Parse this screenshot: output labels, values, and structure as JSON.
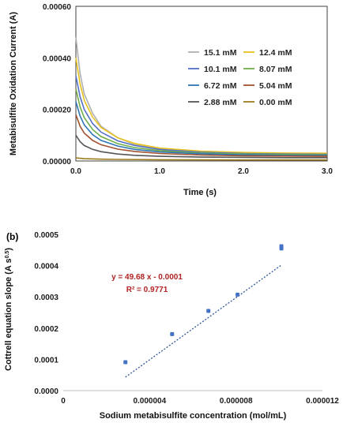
{
  "panel_b_label": "(b)",
  "chart_data": [
    {
      "type": "line",
      "title": "",
      "xlabel": "Time (s)",
      "ylabel": "Metabisulfite Oxidation Current  (A)",
      "xlim": [
        0,
        3
      ],
      "ylim": [
        0,
        0.0006
      ],
      "x_ticks": [
        "0.0",
        "1.0",
        "2.0",
        "3.0"
      ],
      "y_ticks": [
        "0.00000",
        "0.00020",
        "0.00040",
        "0.00060"
      ],
      "grid": false,
      "legend": "right",
      "series": [
        {
          "name": "15.1 mM",
          "color": "#b0b0b0",
          "values": [
            [
              0.0,
              0.00048
            ],
            [
              0.05,
              0.00034
            ],
            [
              0.1,
              0.00026
            ],
            [
              0.2,
              0.000185
            ],
            [
              0.3,
              0.000135
            ],
            [
              0.5,
              9e-05
            ],
            [
              0.7,
              6.5e-05
            ],
            [
              1.0,
              4.5e-05
            ],
            [
              1.5,
              3.2e-05
            ],
            [
              2.0,
              2.6e-05
            ],
            [
              2.5,
              2.3e-05
            ],
            [
              3.0,
              2.1e-05
            ]
          ]
        },
        {
          "name": "12.4 mM",
          "color": "#e8c21e",
          "values": [
            [
              0.0,
              0.0004
            ],
            [
              0.05,
              0.0003
            ],
            [
              0.1,
              0.000235
            ],
            [
              0.2,
              0.00017
            ],
            [
              0.3,
              0.00013
            ],
            [
              0.5,
              9e-05
            ],
            [
              0.7,
              6.8e-05
            ],
            [
              1.0,
              5e-05
            ],
            [
              1.5,
              3.8e-05
            ],
            [
              2.0,
              3.3e-05
            ],
            [
              2.5,
              3.1e-05
            ],
            [
              3.0,
              3e-05
            ]
          ]
        },
        {
          "name": "10.1 mM",
          "color": "#5470c6",
          "values": [
            [
              0.0,
              0.00033
            ],
            [
              0.05,
              0.00025
            ],
            [
              0.1,
              0.0002
            ],
            [
              0.2,
              0.000145
            ],
            [
              0.3,
              0.000112
            ],
            [
              0.5,
              7.8e-05
            ],
            [
              0.7,
              6e-05
            ],
            [
              1.0,
              4.5e-05
            ],
            [
              1.5,
              3.4e-05
            ],
            [
              2.0,
              2.9e-05
            ],
            [
              2.5,
              2.7e-05
            ],
            [
              3.0,
              2.6e-05
            ]
          ]
        },
        {
          "name": "8.07 mM",
          "color": "#70ad47",
          "values": [
            [
              0.0,
              0.00028
            ],
            [
              0.05,
              0.00021
            ],
            [
              0.1,
              0.000168
            ],
            [
              0.2,
              0.000122
            ],
            [
              0.3,
              9.5e-05
            ],
            [
              0.5,
              6.7e-05
            ],
            [
              0.7,
              5.2e-05
            ],
            [
              1.0,
              4e-05
            ],
            [
              1.5,
              3.1e-05
            ],
            [
              2.0,
              2.7e-05
            ],
            [
              2.5,
              2.5e-05
            ],
            [
              3.0,
              2.4e-05
            ]
          ]
        },
        {
          "name": "6.72 mM",
          "color": "#2e75b6",
          "values": [
            [
              0.0,
              0.00023
            ],
            [
              0.05,
              0.000175
            ],
            [
              0.1,
              0.00014
            ],
            [
              0.2,
              0.000102
            ],
            [
              0.3,
              8e-05
            ],
            [
              0.5,
              5.8e-05
            ],
            [
              0.7,
              4.5e-05
            ],
            [
              1.0,
              3.5e-05
            ],
            [
              1.5,
              2.8e-05
            ],
            [
              2.0,
              2.4e-05
            ],
            [
              2.5,
              2.2e-05
            ],
            [
              3.0,
              2.1e-05
            ]
          ]
        },
        {
          "name": "5.04 mM",
          "color": "#a0522d",
          "values": [
            [
              0.0,
              0.00018
            ],
            [
              0.05,
              0.000135
            ],
            [
              0.1,
              0.000108
            ],
            [
              0.2,
              8e-05
            ],
            [
              0.3,
              6.3e-05
            ],
            [
              0.5,
              4.6e-05
            ],
            [
              0.7,
              3.7e-05
            ],
            [
              1.0,
              2.9e-05
            ],
            [
              1.5,
              2.3e-05
            ],
            [
              2.0,
              2e-05
            ],
            [
              2.5,
              1.9e-05
            ],
            [
              3.0,
              1.8e-05
            ]
          ]
        },
        {
          "name": "2.88 mM",
          "color": "#555555",
          "values": [
            [
              0.0,
              0.0001
            ],
            [
              0.05,
              7.5e-05
            ],
            [
              0.1,
              6e-05
            ],
            [
              0.2,
              4.5e-05
            ],
            [
              0.3,
              3.6e-05
            ],
            [
              0.5,
              2.7e-05
            ],
            [
              0.7,
              2.2e-05
            ],
            [
              1.0,
              1.8e-05
            ],
            [
              1.5,
              1.5e-05
            ],
            [
              2.0,
              1.4e-05
            ],
            [
              2.5,
              1.3e-05
            ],
            [
              3.0,
              1.3e-05
            ]
          ]
        },
        {
          "name": "0.00 mM",
          "color": "#9c7c1c",
          "values": [
            [
              0.0,
              1.2e-05
            ],
            [
              0.1,
              9e-06
            ],
            [
              0.3,
              7e-06
            ],
            [
              0.5,
              6e-06
            ],
            [
              1.0,
              5e-06
            ],
            [
              2.0,
              4e-06
            ],
            [
              3.0,
              4e-06
            ]
          ]
        }
      ]
    },
    {
      "type": "scatter",
      "title": "",
      "xlabel": "Sodium metabisulfite concentration (mol/mL)",
      "ylabel": "Cottrell equation slope  (A s",
      "ylabel_sup": "0.5",
      "ylabel_end": ")",
      "xlim": [
        0,
        1.2e-05
      ],
      "ylim": [
        0,
        0.0005
      ],
      "x_ticks": [
        "0",
        "0.000004",
        "0.000008",
        "0.000012"
      ],
      "y_ticks": [
        "0.0000",
        "0.0001",
        "0.0002",
        "0.0003",
        "0.0004",
        "0.0005"
      ],
      "grid": false,
      "marker_color": "#4472c4",
      "trendline_color": "#2f5597",
      "points": [
        {
          "x": 2.88e-06,
          "y": 9.1e-05
        },
        {
          "x": 5.04e-06,
          "y": 0.000181
        },
        {
          "x": 6.72e-06,
          "y": 0.000255
        },
        {
          "x": 8.07e-06,
          "y": 0.000307
        },
        {
          "x": 1.01e-05,
          "y": 0.000455
        },
        {
          "x": 1.01e-05,
          "y": 0.000462
        }
      ],
      "trendline": {
        "slope": 49.68,
        "intercept": -0.0001,
        "x_range": [
          2.88e-06,
          1.01e-05
        ]
      },
      "equation": "y = 49.68 x - 0.0001",
      "r_squared": "R² = 0.9771"
    }
  ]
}
